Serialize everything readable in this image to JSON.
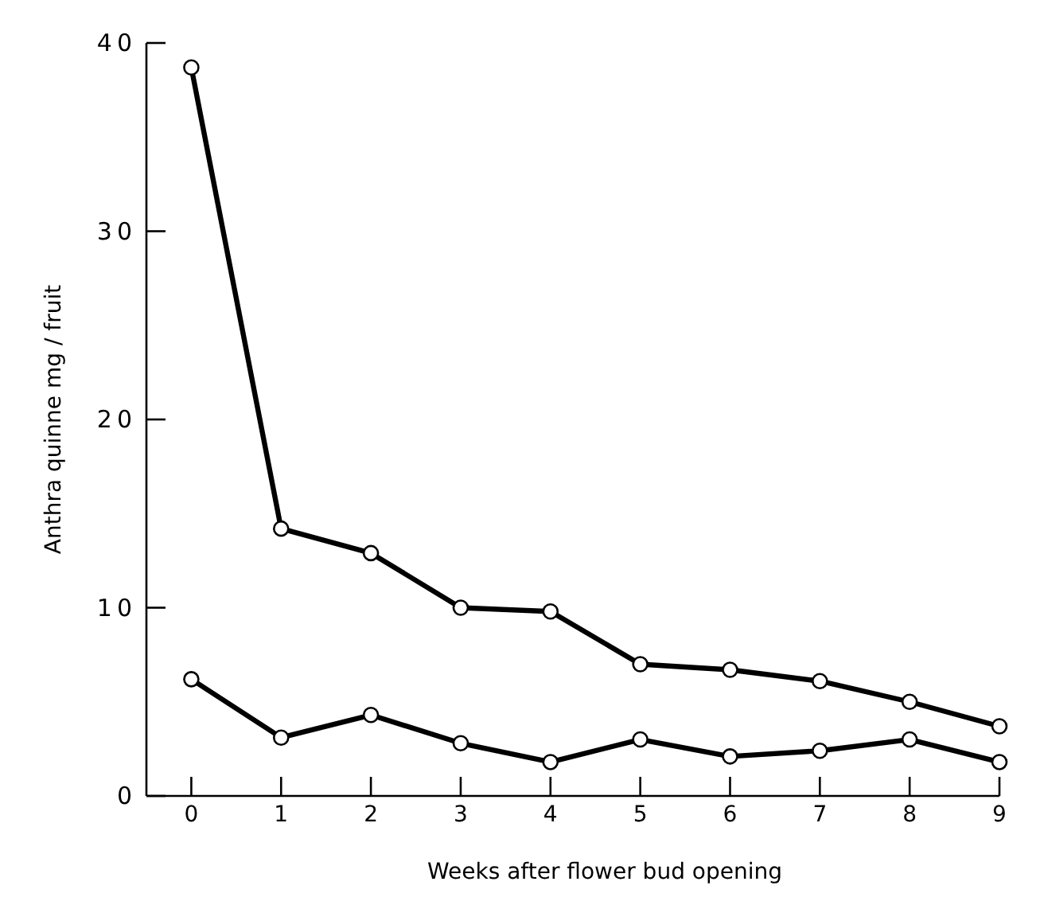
{
  "chart_data": {
    "type": "line",
    "xlabel": "Weeks after flower bud opening",
    "ylabel": "Anthra quinne mg / fruit",
    "x": [
      0,
      1,
      2,
      3,
      4,
      5,
      6,
      7,
      8,
      9
    ],
    "series": [
      {
        "color": "#000000",
        "values": [
          38.7,
          14.2,
          12.9,
          10.0,
          9.8,
          7.0,
          6.7,
          6.1,
          5.0,
          3.7
        ]
      },
      {
        "color": "#000000",
        "values": [
          6.2,
          3.1,
          4.3,
          2.8,
          1.8,
          3.0,
          2.1,
          2.4,
          3.0,
          1.8
        ]
      }
    ],
    "xlim": [
      -0.5,
      9
    ],
    "xticks": [
      0,
      1,
      2,
      3,
      4,
      5,
      6,
      7,
      8,
      9
    ],
    "ylim": [
      0,
      40
    ],
    "yticks": [
      0,
      10,
      20,
      30,
      40
    ],
    "grid": false,
    "marker": "circle",
    "line_style": "solid"
  }
}
